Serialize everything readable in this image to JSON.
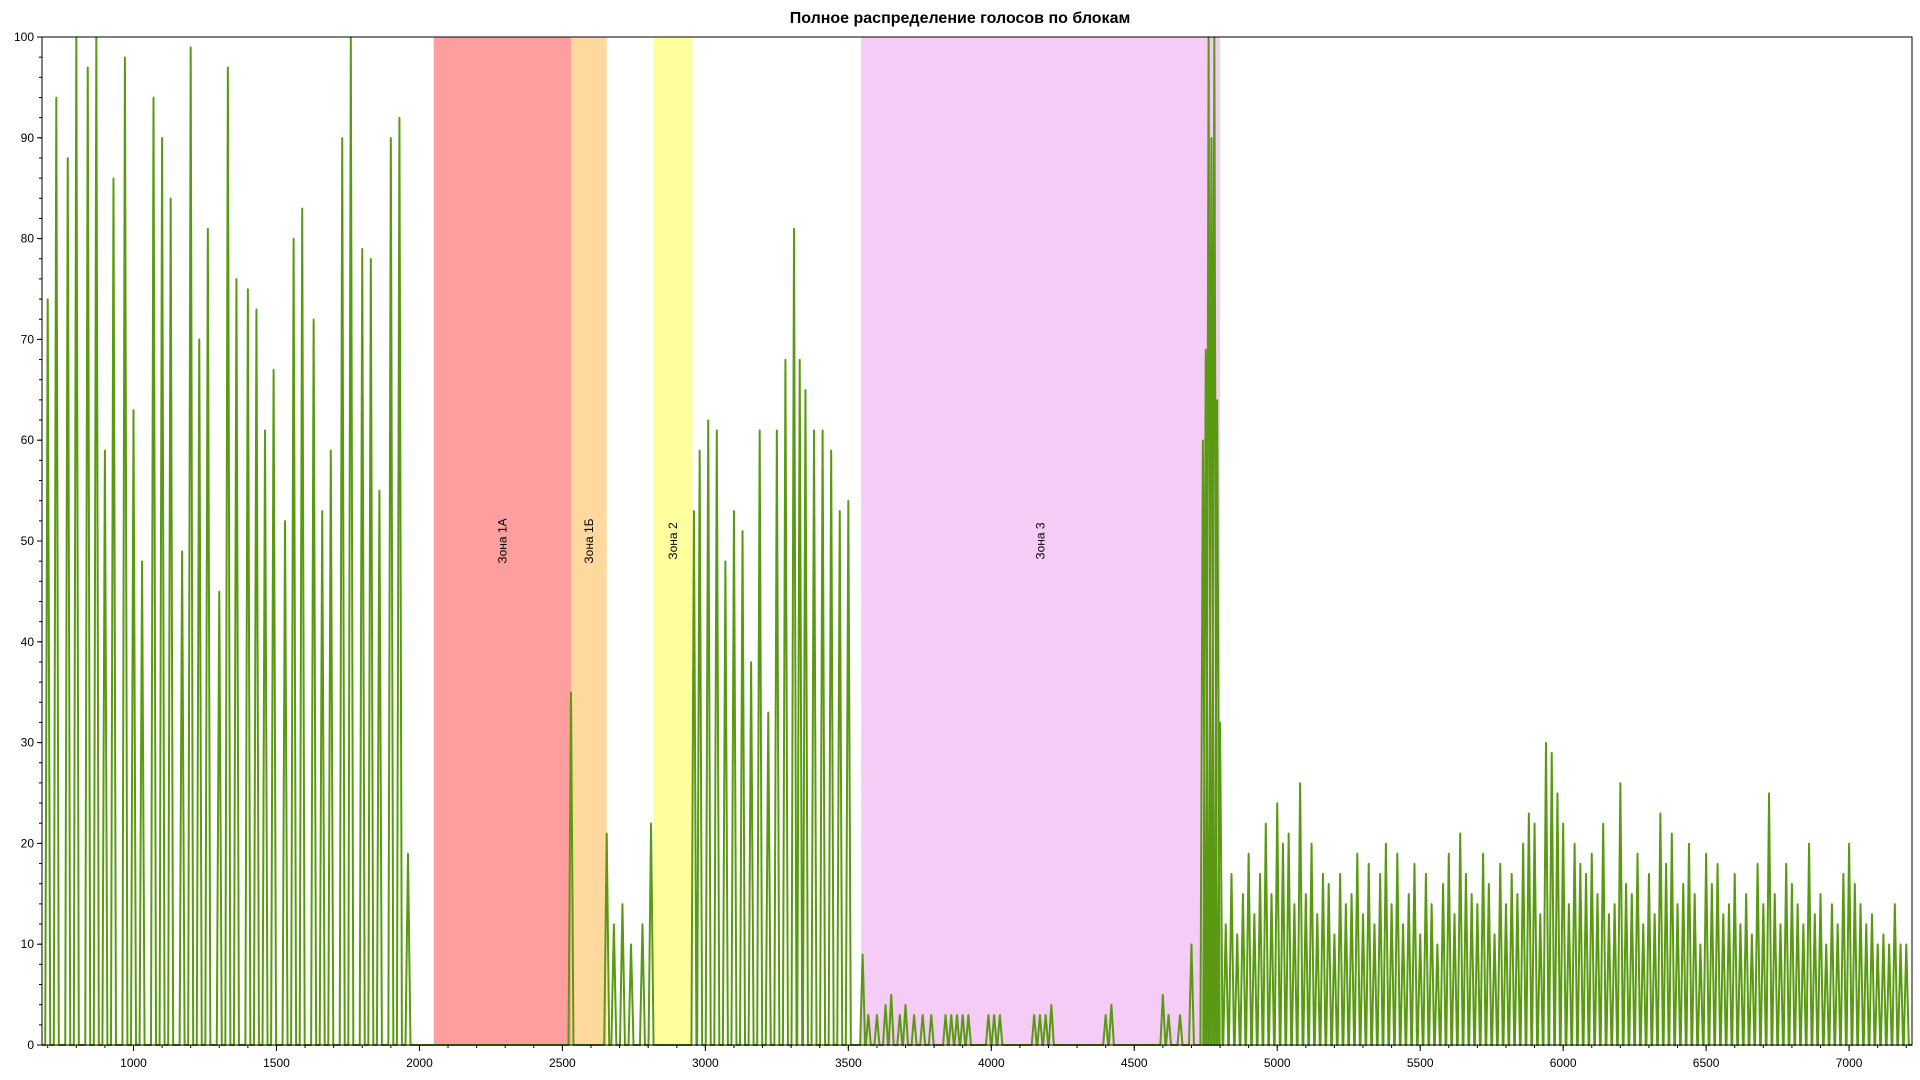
{
  "chart_data": {
    "type": "line",
    "title": "Полное распределение голосов по блокам",
    "xlabel": "",
    "ylabel": "",
    "xlim": [
      680,
      7220
    ],
    "ylim": [
      0,
      100
    ],
    "grid": false,
    "x_ticks": [
      1000,
      1500,
      2000,
      2500,
      3000,
      3500,
      4000,
      4500,
      5000,
      5500,
      6000,
      6500,
      7000
    ],
    "y_ticks": [
      0,
      10,
      20,
      30,
      40,
      50,
      60,
      70,
      80,
      90,
      100
    ],
    "colors": {
      "line": "#5a9a12",
      "zone_1a": "#ff9e9e",
      "zone_1b": "#ffd89e",
      "zone_2": "#ffff9e",
      "zone_3": "#f5ccf6"
    },
    "zones": [
      {
        "label": "Зона 1А",
        "x_start": 2050,
        "x_end": 2530,
        "color": "#ff9e9e"
      },
      {
        "label": "Зона 1Б",
        "x_start": 2530,
        "x_end": 2655,
        "color": "#ffd89e"
      },
      {
        "label": "Зона 2",
        "x_start": 2820,
        "x_end": 2955,
        "color": "#ffff9e"
      },
      {
        "label": "Зона 3",
        "x_start": 3545,
        "x_end": 4800,
        "color": "#f5ccf6"
      }
    ],
    "series": [
      {
        "values": [
          [
            700,
            74
          ],
          [
            730,
            94
          ],
          [
            770,
            88
          ],
          [
            800,
            100
          ],
          [
            840,
            97
          ],
          [
            870,
            100
          ],
          [
            900,
            59
          ],
          [
            930,
            86
          ],
          [
            970,
            98
          ],
          [
            1000,
            63
          ],
          [
            1030,
            48
          ],
          [
            1070,
            94
          ],
          [
            1100,
            90
          ],
          [
            1130,
            84
          ],
          [
            1170,
            49
          ],
          [
            1200,
            99
          ],
          [
            1230,
            70
          ],
          [
            1260,
            81
          ],
          [
            1300,
            45
          ],
          [
            1330,
            97
          ],
          [
            1360,
            76
          ],
          [
            1400,
            75
          ],
          [
            1430,
            73
          ],
          [
            1460,
            61
          ],
          [
            1490,
            67
          ],
          [
            1530,
            52
          ],
          [
            1560,
            80
          ],
          [
            1590,
            83
          ],
          [
            1630,
            72
          ],
          [
            1660,
            53
          ],
          [
            1690,
            59
          ],
          [
            1730,
            90
          ],
          [
            1760,
            100
          ],
          [
            1800,
            79
          ],
          [
            1830,
            78
          ],
          [
            1860,
            55
          ],
          [
            1900,
            90
          ],
          [
            1930,
            92
          ],
          [
            1960,
            19
          ],
          [
            2530,
            35
          ],
          [
            2655,
            21
          ],
          [
            2680,
            12
          ],
          [
            2710,
            14
          ],
          [
            2740,
            10
          ],
          [
            2780,
            12
          ],
          [
            2810,
            22
          ],
          [
            2960,
            53
          ],
          [
            2980,
            59
          ],
          [
            3010,
            62
          ],
          [
            3040,
            61
          ],
          [
            3070,
            48
          ],
          [
            3100,
            53
          ],
          [
            3130,
            51
          ],
          [
            3160,
            38
          ],
          [
            3190,
            61
          ],
          [
            3220,
            33
          ],
          [
            3250,
            61
          ],
          [
            3280,
            68
          ],
          [
            3310,
            81
          ],
          [
            3330,
            68
          ],
          [
            3350,
            65
          ],
          [
            3380,
            61
          ],
          [
            3410,
            61
          ],
          [
            3440,
            59
          ],
          [
            3470,
            53
          ],
          [
            3500,
            54
          ],
          [
            3550,
            9
          ],
          [
            3570,
            3
          ],
          [
            3600,
            3
          ],
          [
            3630,
            4
          ],
          [
            3650,
            5
          ],
          [
            3680,
            3
          ],
          [
            3700,
            4
          ],
          [
            3730,
            3
          ],
          [
            3760,
            3
          ],
          [
            3790,
            3
          ],
          [
            3840,
            3
          ],
          [
            3860,
            3
          ],
          [
            3880,
            3
          ],
          [
            3900,
            3
          ],
          [
            3920,
            3
          ],
          [
            3990,
            3
          ],
          [
            4010,
            3
          ],
          [
            4030,
            3
          ],
          [
            4150,
            3
          ],
          [
            4170,
            3
          ],
          [
            4190,
            3
          ],
          [
            4210,
            4
          ],
          [
            4400,
            3
          ],
          [
            4420,
            4
          ],
          [
            4600,
            5
          ],
          [
            4620,
            3
          ],
          [
            4660,
            3
          ],
          [
            4700,
            10
          ],
          [
            4740,
            60
          ],
          [
            4750,
            69
          ],
          [
            4760,
            100
          ],
          [
            4770,
            90
          ],
          [
            4780,
            100
          ],
          [
            4790,
            64
          ],
          [
            4800,
            32
          ],
          [
            4820,
            12
          ],
          [
            4840,
            17
          ],
          [
            4860,
            11
          ],
          [
            4880,
            15
          ],
          [
            4900,
            19
          ],
          [
            4920,
            13
          ],
          [
            4940,
            17
          ],
          [
            4960,
            22
          ],
          [
            4980,
            15
          ],
          [
            5000,
            24
          ],
          [
            5020,
            20
          ],
          [
            5040,
            21
          ],
          [
            5060,
            14
          ],
          [
            5080,
            26
          ],
          [
            5100,
            15
          ],
          [
            5120,
            20
          ],
          [
            5140,
            13
          ],
          [
            5160,
            17
          ],
          [
            5180,
            16
          ],
          [
            5200,
            11
          ],
          [
            5220,
            17
          ],
          [
            5240,
            14
          ],
          [
            5260,
            15
          ],
          [
            5280,
            19
          ],
          [
            5300,
            13
          ],
          [
            5320,
            18
          ],
          [
            5340,
            12
          ],
          [
            5360,
            17
          ],
          [
            5380,
            20
          ],
          [
            5400,
            14
          ],
          [
            5420,
            19
          ],
          [
            5440,
            12
          ],
          [
            5460,
            15
          ],
          [
            5480,
            18
          ],
          [
            5500,
            11
          ],
          [
            5520,
            17
          ],
          [
            5540,
            14
          ],
          [
            5560,
            10
          ],
          [
            5580,
            16
          ],
          [
            5600,
            19
          ],
          [
            5620,
            13
          ],
          [
            5640,
            21
          ],
          [
            5660,
            17
          ],
          [
            5680,
            15
          ],
          [
            5700,
            14
          ],
          [
            5720,
            19
          ],
          [
            5740,
            16
          ],
          [
            5760,
            11
          ],
          [
            5780,
            18
          ],
          [
            5800,
            14
          ],
          [
            5820,
            17
          ],
          [
            5840,
            15
          ],
          [
            5860,
            20
          ],
          [
            5880,
            23
          ],
          [
            5900,
            22
          ],
          [
            5920,
            13
          ],
          [
            5940,
            30
          ],
          [
            5960,
            29
          ],
          [
            5980,
            25
          ],
          [
            6000,
            22
          ],
          [
            6020,
            14
          ],
          [
            6040,
            20
          ],
          [
            6060,
            18
          ],
          [
            6080,
            17
          ],
          [
            6100,
            19
          ],
          [
            6120,
            15
          ],
          [
            6140,
            22
          ],
          [
            6160,
            13
          ],
          [
            6180,
            14
          ],
          [
            6200,
            26
          ],
          [
            6220,
            16
          ],
          [
            6240,
            15
          ],
          [
            6260,
            19
          ],
          [
            6280,
            12
          ],
          [
            6300,
            17
          ],
          [
            6320,
            13
          ],
          [
            6340,
            23
          ],
          [
            6360,
            18
          ],
          [
            6380,
            21
          ],
          [
            6400,
            14
          ],
          [
            6420,
            16
          ],
          [
            6440,
            20
          ],
          [
            6460,
            15
          ],
          [
            6480,
            10
          ],
          [
            6500,
            19
          ],
          [
            6520,
            16
          ],
          [
            6540,
            18
          ],
          [
            6560,
            13
          ],
          [
            6580,
            14
          ],
          [
            6600,
            17
          ],
          [
            6620,
            12
          ],
          [
            6640,
            15
          ],
          [
            6660,
            11
          ],
          [
            6680,
            18
          ],
          [
            6700,
            14
          ],
          [
            6720,
            25
          ],
          [
            6740,
            15
          ],
          [
            6760,
            12
          ],
          [
            6780,
            18
          ],
          [
            6800,
            16
          ],
          [
            6820,
            14
          ],
          [
            6840,
            12
          ],
          [
            6860,
            20
          ],
          [
            6880,
            13
          ],
          [
            6900,
            15
          ],
          [
            6920,
            10
          ],
          [
            6940,
            14
          ],
          [
            6960,
            12
          ],
          [
            6980,
            17
          ],
          [
            7000,
            20
          ],
          [
            7020,
            16
          ],
          [
            7040,
            14
          ],
          [
            7060,
            12
          ],
          [
            7080,
            13
          ],
          [
            7100,
            10
          ],
          [
            7120,
            11
          ],
          [
            7140,
            10
          ],
          [
            7160,
            14
          ],
          [
            7180,
            10
          ],
          [
            7200,
            10
          ]
        ]
      }
    ]
  }
}
